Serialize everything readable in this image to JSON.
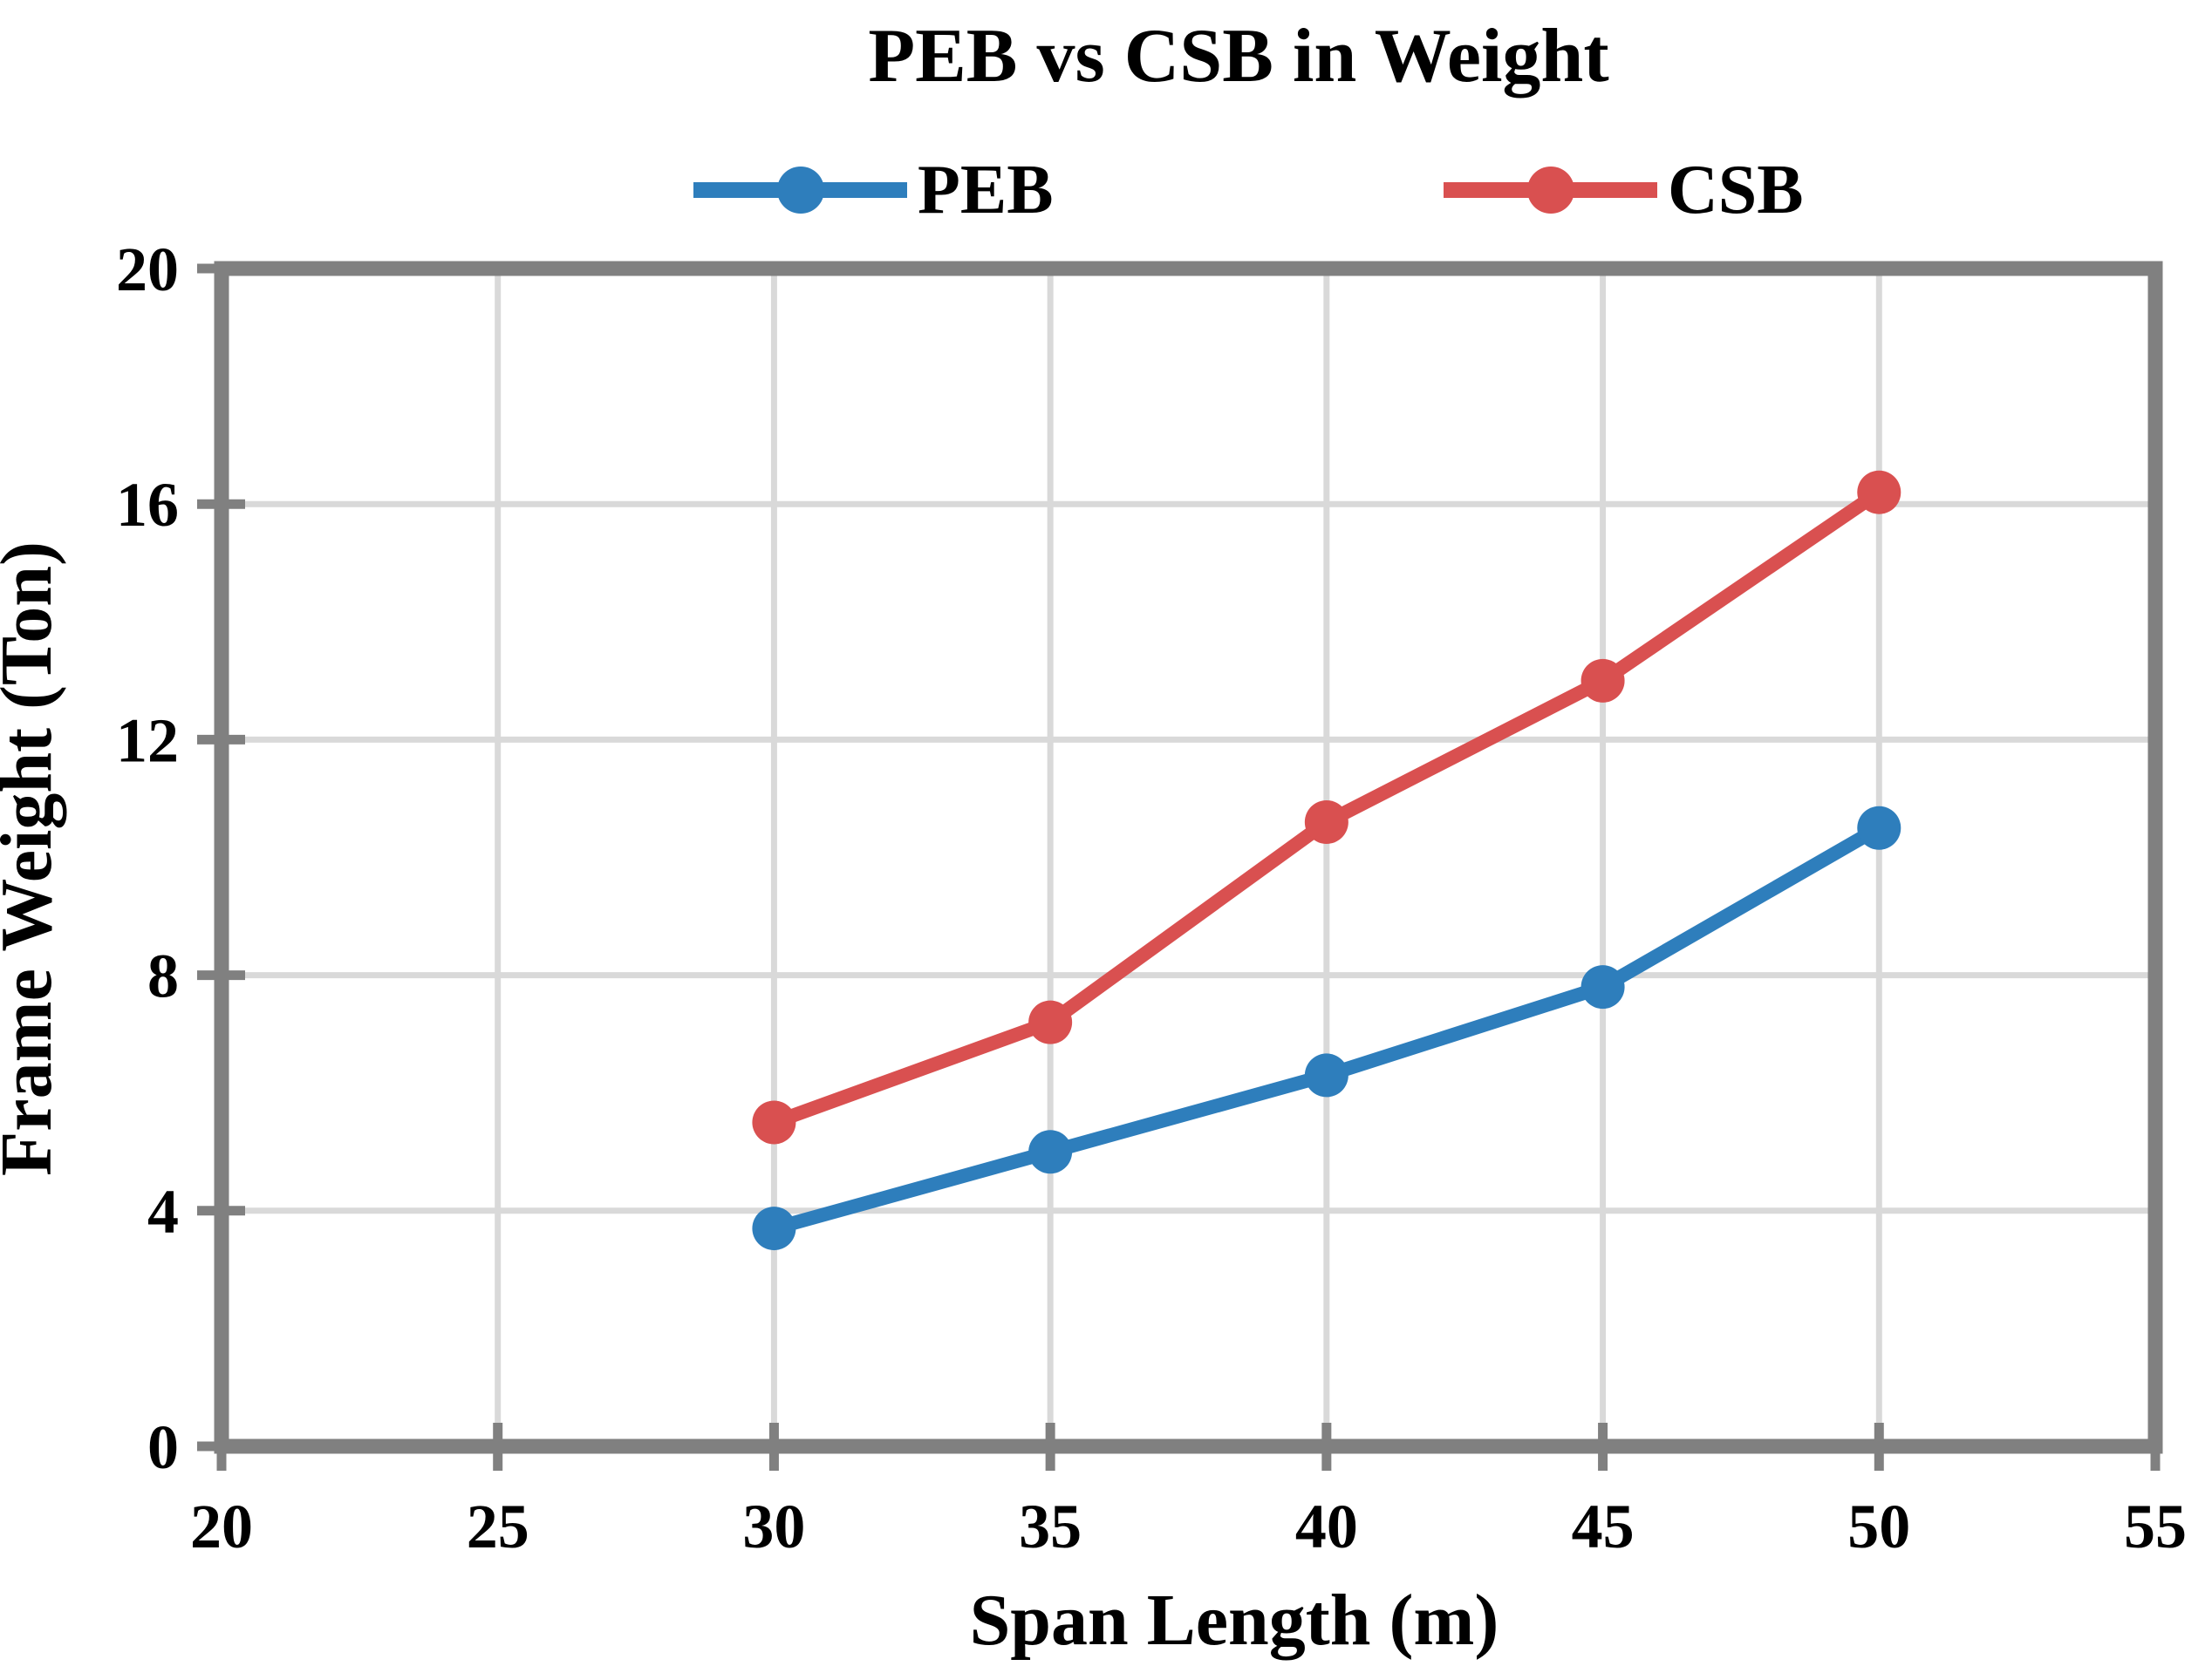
{
  "title": "PEB vs CSB in Weight",
  "chart_data": {
    "type": "line",
    "x": [
      30,
      35,
      40,
      45,
      50
    ],
    "series": [
      {
        "name": "PEB",
        "color": "#2E7EBC",
        "values": [
          3.7,
          5.0,
          6.3,
          7.8,
          10.5
        ]
      },
      {
        "name": "CSB",
        "color": "#D95050",
        "values": [
          5.5,
          7.2,
          10.6,
          13.0,
          16.2
        ]
      }
    ],
    "xlabel": "Span Length (m)",
    "ylabel": "Frame Weight (Ton)",
    "xlim": [
      20,
      55
    ],
    "ylim": [
      0,
      20
    ],
    "xticks": [
      20,
      25,
      30,
      35,
      40,
      45,
      50,
      55
    ],
    "yticks": [
      0,
      4,
      8,
      12,
      16,
      20
    ],
    "grid": true,
    "legend_position": "top-center",
    "colors": {
      "axis_border": "#808080",
      "gridline": "#D9D9D9",
      "tick": "#808080",
      "text": "#000000",
      "background": "#FFFFFF"
    }
  }
}
